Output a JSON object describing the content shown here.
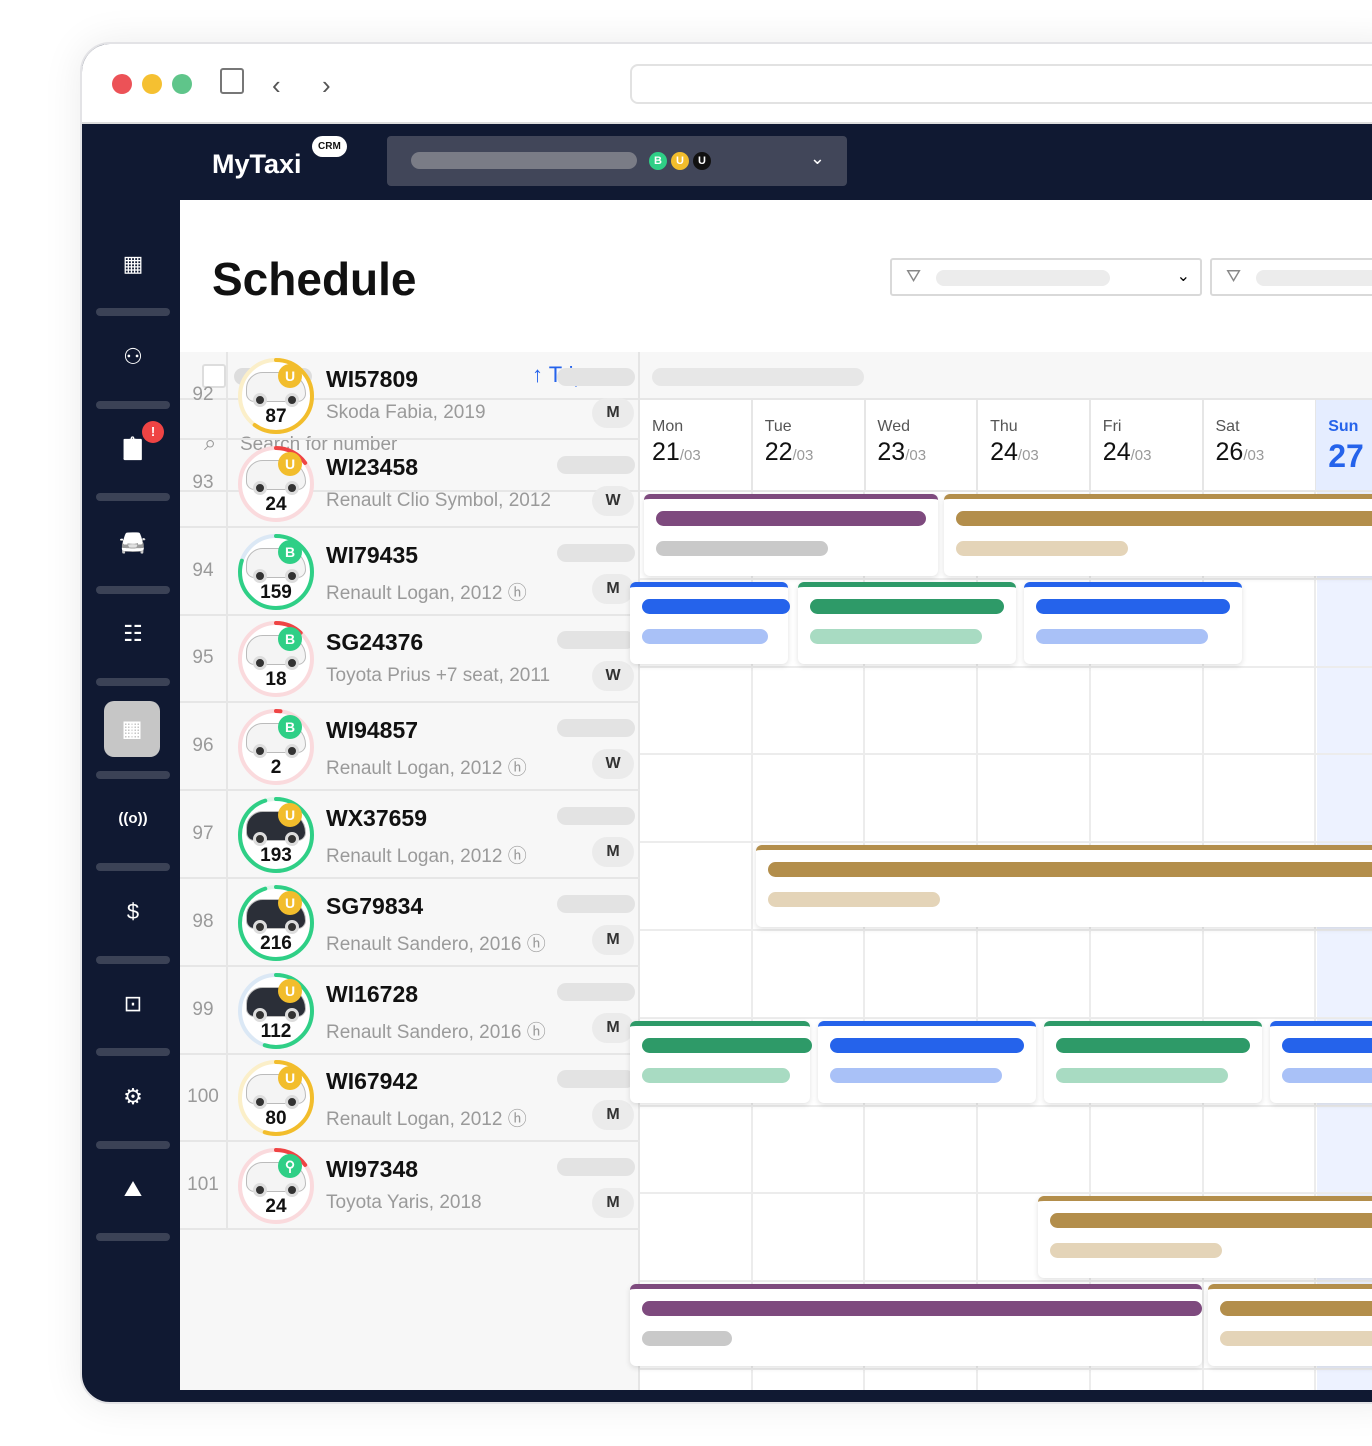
{
  "browser": {
    "traffic": [
      "#ec5257",
      "#f5c031",
      "#5fc58a"
    ]
  },
  "header": {
    "logo": "MyTaxi",
    "logo_badge": "CRM",
    "account_badges": [
      {
        "letter": "B",
        "color": "#2fcf86"
      },
      {
        "letter": "U",
        "color": "#f2bd2c"
      },
      {
        "letter": "U",
        "color": "#111111"
      }
    ]
  },
  "sidebar": {
    "items": [
      {
        "icon": "dashboard-icon"
      },
      {
        "icon": "user-icon"
      },
      {
        "icon": "clipboard-alert-icon",
        "alert": "!"
      },
      {
        "icon": "car-icon"
      },
      {
        "icon": "document-icon"
      },
      {
        "icon": "calendar-icon",
        "active": true
      },
      {
        "icon": "broadcast-icon",
        "label": "((o))"
      },
      {
        "icon": "invoice-icon"
      },
      {
        "icon": "briefcase-icon"
      },
      {
        "icon": "engine-icon"
      },
      {
        "icon": "map-icon"
      }
    ]
  },
  "page": {
    "title": "Schedule",
    "sort_label": "Trips",
    "search_placeholder": "Search for number"
  },
  "days": [
    {
      "name": "Mon",
      "date": "21",
      "month": "/03"
    },
    {
      "name": "Tue",
      "date": "22",
      "month": "/03"
    },
    {
      "name": "Wed",
      "date": "23",
      "month": "/03"
    },
    {
      "name": "Thu",
      "date": "24",
      "month": "/03"
    },
    {
      "name": "Fri",
      "date": "24",
      "month": "/03"
    },
    {
      "name": "Sat",
      "date": "26",
      "month": "/03"
    },
    {
      "name": "Sun",
      "date": "27",
      "month": "",
      "today": true
    }
  ],
  "colors": {
    "purple": "#7e4a7e",
    "gold": "#b38e4b",
    "blue": "#2563eb",
    "green": "#2e9a68"
  },
  "vehicles": [
    {
      "row": "92",
      "plate": "WI57809",
      "model": "Skoda Fabia, 2019",
      "gauge": "87",
      "level": 0.6,
      "ring": "#f2bd2c",
      "track": "#fbefc9",
      "badge": "U",
      "badge_color": "#f2bd2c",
      "car": "white",
      "trans": "M"
    },
    {
      "row": "93",
      "plate": "WI23458",
      "model": "Renault Clio Symbol, 2012",
      "gauge": "24",
      "level": 0.15,
      "ring": "#ef4444",
      "track": "#fadadd",
      "badge": "U",
      "badge_color": "#f2bd2c",
      "car": "white",
      "trans": "W"
    },
    {
      "row": "94",
      "plate": "WI79435",
      "model": "Renault Logan, 2012 ⓗ",
      "gauge": "159",
      "level": 0.8,
      "ring": "#2fcf86",
      "track": "#dbe8f5",
      "badge": "B",
      "badge_color": "#2fcf86",
      "car": "white",
      "trans": "M"
    },
    {
      "row": "95",
      "plate": "SG24376",
      "model": "Toyota Prius +7 seat, 2011",
      "gauge": "18",
      "level": 0.12,
      "ring": "#ef4444",
      "track": "#fadadd",
      "badge": "B",
      "badge_color": "#2fcf86",
      "car": "white",
      "trans": "W"
    },
    {
      "row": "96",
      "plate": "WI94857",
      "model": "Renault Logan, 2012 ⓗ",
      "gauge": "2",
      "level": 0.02,
      "ring": "#ef4444",
      "track": "#fadadd",
      "badge": "B",
      "badge_color": "#2fcf86",
      "car": "white",
      "trans": "W"
    },
    {
      "row": "97",
      "plate": "WX37659",
      "model": "Renault Logan, 2012 ⓗ",
      "gauge": "193",
      "level": 0.95,
      "ring": "#2fcf86",
      "track": "#dff5ea",
      "badge": "U",
      "badge_color": "#f2bd2c",
      "car": "dark",
      "trans": "M"
    },
    {
      "row": "98",
      "plate": "SG79834",
      "model": "Renault Sandero, 2016 ⓗ",
      "gauge": "216",
      "level": 0.95,
      "ring": "#2fcf86",
      "track": "#dff5ea",
      "badge": "U",
      "badge_color": "#f2bd2c",
      "car": "dark",
      "trans": "M"
    },
    {
      "row": "99",
      "plate": "WI16728",
      "model": "Renault Sandero, 2016 ⓗ",
      "gauge": "112",
      "level": 0.55,
      "ring": "#2fcf86",
      "track": "#dbe8f5",
      "badge": "U",
      "badge_color": "#f2bd2c",
      "car": "dark",
      "trans": "M"
    },
    {
      "row": "100",
      "plate": "WI67942",
      "model": "Renault Logan, 2012 ⓗ",
      "gauge": "80",
      "level": 0.55,
      "ring": "#f2bd2c",
      "track": "#fbefc9",
      "badge": "U",
      "badge_color": "#f2bd2c",
      "car": "white",
      "trans": "M"
    },
    {
      "row": "101",
      "plate": "WI97348",
      "model": "Toyota Yaris, 2018",
      "gauge": "24",
      "level": 0.15,
      "ring": "#ef4444",
      "track": "#fadadd",
      "badge": "⚲",
      "badge_color": "#2fcf86",
      "car": "white",
      "trans": "M"
    }
  ]
}
